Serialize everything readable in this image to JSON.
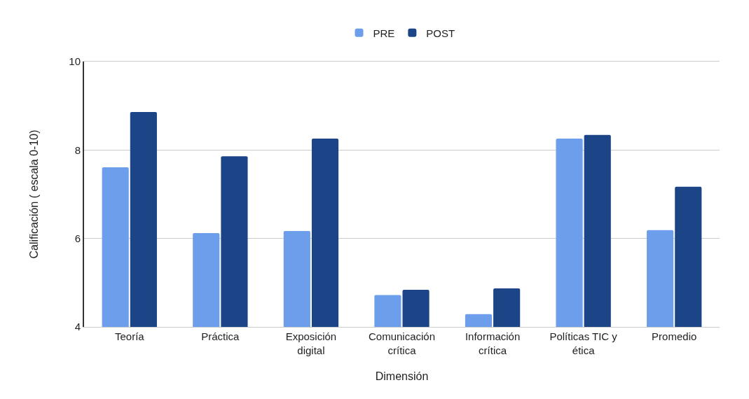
{
  "chart_data": {
    "type": "bar",
    "xlabel": "Dimensión",
    "ylabel": "Calificación ( escala 0-10)",
    "categories": [
      "Teoría",
      "Práctica",
      "Exposición digital",
      "Comunicación crítica",
      "Información crítica",
      "Políticas TIC y ética",
      "Promedio"
    ],
    "series": [
      {
        "name": "PRE",
        "color": "#6d9eeb",
        "values": [
          7.61,
          6.12,
          6.17,
          4.72,
          4.29,
          8.26,
          6.19
        ]
      },
      {
        "name": "POST",
        "color": "#1c4587",
        "values": [
          8.86,
          7.86,
          8.26,
          4.84,
          4.87,
          8.34,
          7.17
        ]
      }
    ],
    "ylim": [
      4,
      10
    ],
    "yticks": [
      4,
      6,
      8,
      10
    ],
    "grid": "y",
    "legend": "top"
  }
}
